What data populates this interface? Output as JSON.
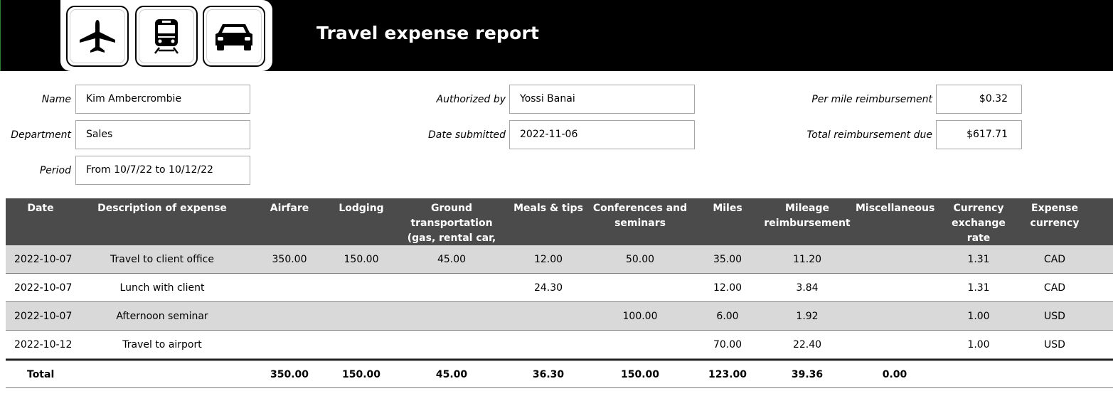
{
  "header": {
    "title": "Travel expense report",
    "icons": [
      "airplane-icon",
      "train-icon",
      "car-icon"
    ]
  },
  "info": {
    "name_label": "Name",
    "name_value": "Kim Ambercrombie",
    "department_label": "Department",
    "department_value": "Sales",
    "period_label": "Period",
    "period_value": "From 10/7/22 to 10/12/22",
    "authorized_label": "Authorized by",
    "authorized_value": "Yossi Banai",
    "date_submitted_label": "Date submitted",
    "date_submitted_value": "2022-11-06",
    "per_mile_label": "Per mile reimbursement",
    "per_mile_value": "$0.32",
    "total_due_label": "Total reimbursement due",
    "total_due_value": "$617.71"
  },
  "table": {
    "columns": [
      "Date",
      "Description of expense",
      "Airfare",
      "Lodging",
      "Ground transportation (gas, rental car, taxi)",
      "Meals & tips",
      "Conferences and seminars",
      "Miles",
      "Mileage reimbursement",
      "Miscellaneous",
      "Currency exchange  rate",
      "Expense currency"
    ],
    "header_lines": {
      "ground_1": "Ground",
      "ground_2": "transportation",
      "ground_3": "(gas, rental car, taxi)",
      "conf_1": "Conferences and",
      "conf_2": "seminars",
      "mileage_1": "Mileage",
      "mileage_2": "reimbursement",
      "currency_1": "Currency",
      "currency_2": "exchange  rate",
      "expense_1": "Expense",
      "expense_2": "currency"
    },
    "rows": [
      [
        "2022-10-07",
        "Travel to client office",
        "350.00",
        "150.00",
        "45.00",
        "12.00",
        "50.00",
        "35.00",
        "11.20",
        "",
        "1.31",
        "CAD"
      ],
      [
        "2022-10-07",
        "Lunch with client",
        "",
        "",
        "",
        "24.30",
        "",
        "12.00",
        "3.84",
        "",
        "1.31",
        "CAD"
      ],
      [
        "2022-10-07",
        "Afternoon seminar",
        "",
        "",
        "",
        "",
        "100.00",
        "6.00",
        "1.92",
        "",
        "1.00",
        "USD"
      ],
      [
        "2022-10-12",
        "Travel to airport",
        "",
        "",
        "",
        "",
        "",
        "70.00",
        "22.40",
        "",
        "1.00",
        "USD"
      ]
    ],
    "totals": [
      "Total",
      "",
      "350.00",
      "150.00",
      "45.00",
      "36.30",
      "150.00",
      "123.00",
      "39.36",
      "0.00",
      "",
      ""
    ]
  }
}
